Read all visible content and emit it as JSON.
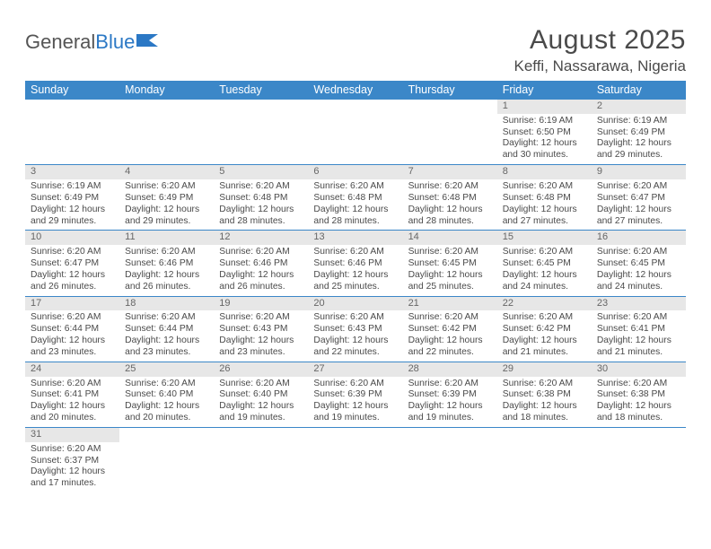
{
  "brand": {
    "part1": "General",
    "part2": "Blue"
  },
  "title": "August 2025",
  "location": "Keffi, Nassarawa, Nigeria",
  "colors": {
    "header_bg": "#3b87c8",
    "header_fg": "#ffffff",
    "daynum_bg": "#e7e7e7",
    "text": "#4a4a4a",
    "rule": "#3b87c8",
    "brand_gray": "#555555",
    "brand_blue": "#2b78c5",
    "page_bg": "#ffffff"
  },
  "typography": {
    "title_fontsize": 30,
    "location_fontsize": 17,
    "dayhead_fontsize": 12.5,
    "cell_fontsize": 10.3,
    "font_family": "Arial"
  },
  "day_names": [
    "Sunday",
    "Monday",
    "Tuesday",
    "Wednesday",
    "Thursday",
    "Friday",
    "Saturday"
  ],
  "labels": {
    "sunrise": "Sunrise:",
    "sunset": "Sunset:",
    "daylight_prefix": "Daylight:",
    "hours_word": "hours",
    "and_word": "and",
    "minutes_word": "minutes."
  },
  "weeks": [
    [
      {
        "n": "",
        "empty": true
      },
      {
        "n": "",
        "empty": true
      },
      {
        "n": "",
        "empty": true
      },
      {
        "n": "",
        "empty": true
      },
      {
        "n": "",
        "empty": true
      },
      {
        "n": "1",
        "sunrise": "6:19 AM",
        "sunset": "6:50 PM",
        "dl_h": 12,
        "dl_m": 30
      },
      {
        "n": "2",
        "sunrise": "6:19 AM",
        "sunset": "6:49 PM",
        "dl_h": 12,
        "dl_m": 29
      }
    ],
    [
      {
        "n": "3",
        "sunrise": "6:19 AM",
        "sunset": "6:49 PM",
        "dl_h": 12,
        "dl_m": 29
      },
      {
        "n": "4",
        "sunrise": "6:20 AM",
        "sunset": "6:49 PM",
        "dl_h": 12,
        "dl_m": 29
      },
      {
        "n": "5",
        "sunrise": "6:20 AM",
        "sunset": "6:48 PM",
        "dl_h": 12,
        "dl_m": 28
      },
      {
        "n": "6",
        "sunrise": "6:20 AM",
        "sunset": "6:48 PM",
        "dl_h": 12,
        "dl_m": 28
      },
      {
        "n": "7",
        "sunrise": "6:20 AM",
        "sunset": "6:48 PM",
        "dl_h": 12,
        "dl_m": 28
      },
      {
        "n": "8",
        "sunrise": "6:20 AM",
        "sunset": "6:48 PM",
        "dl_h": 12,
        "dl_m": 27
      },
      {
        "n": "9",
        "sunrise": "6:20 AM",
        "sunset": "6:47 PM",
        "dl_h": 12,
        "dl_m": 27
      }
    ],
    [
      {
        "n": "10",
        "sunrise": "6:20 AM",
        "sunset": "6:47 PM",
        "dl_h": 12,
        "dl_m": 26
      },
      {
        "n": "11",
        "sunrise": "6:20 AM",
        "sunset": "6:46 PM",
        "dl_h": 12,
        "dl_m": 26
      },
      {
        "n": "12",
        "sunrise": "6:20 AM",
        "sunset": "6:46 PM",
        "dl_h": 12,
        "dl_m": 26
      },
      {
        "n": "13",
        "sunrise": "6:20 AM",
        "sunset": "6:46 PM",
        "dl_h": 12,
        "dl_m": 25
      },
      {
        "n": "14",
        "sunrise": "6:20 AM",
        "sunset": "6:45 PM",
        "dl_h": 12,
        "dl_m": 25
      },
      {
        "n": "15",
        "sunrise": "6:20 AM",
        "sunset": "6:45 PM",
        "dl_h": 12,
        "dl_m": 24
      },
      {
        "n": "16",
        "sunrise": "6:20 AM",
        "sunset": "6:45 PM",
        "dl_h": 12,
        "dl_m": 24
      }
    ],
    [
      {
        "n": "17",
        "sunrise": "6:20 AM",
        "sunset": "6:44 PM",
        "dl_h": 12,
        "dl_m": 23
      },
      {
        "n": "18",
        "sunrise": "6:20 AM",
        "sunset": "6:44 PM",
        "dl_h": 12,
        "dl_m": 23
      },
      {
        "n": "19",
        "sunrise": "6:20 AM",
        "sunset": "6:43 PM",
        "dl_h": 12,
        "dl_m": 23
      },
      {
        "n": "20",
        "sunrise": "6:20 AM",
        "sunset": "6:43 PM",
        "dl_h": 12,
        "dl_m": 22
      },
      {
        "n": "21",
        "sunrise": "6:20 AM",
        "sunset": "6:42 PM",
        "dl_h": 12,
        "dl_m": 22
      },
      {
        "n": "22",
        "sunrise": "6:20 AM",
        "sunset": "6:42 PM",
        "dl_h": 12,
        "dl_m": 21
      },
      {
        "n": "23",
        "sunrise": "6:20 AM",
        "sunset": "6:41 PM",
        "dl_h": 12,
        "dl_m": 21
      }
    ],
    [
      {
        "n": "24",
        "sunrise": "6:20 AM",
        "sunset": "6:41 PM",
        "dl_h": 12,
        "dl_m": 20
      },
      {
        "n": "25",
        "sunrise": "6:20 AM",
        "sunset": "6:40 PM",
        "dl_h": 12,
        "dl_m": 20
      },
      {
        "n": "26",
        "sunrise": "6:20 AM",
        "sunset": "6:40 PM",
        "dl_h": 12,
        "dl_m": 19
      },
      {
        "n": "27",
        "sunrise": "6:20 AM",
        "sunset": "6:39 PM",
        "dl_h": 12,
        "dl_m": 19
      },
      {
        "n": "28",
        "sunrise": "6:20 AM",
        "sunset": "6:39 PM",
        "dl_h": 12,
        "dl_m": 19
      },
      {
        "n": "29",
        "sunrise": "6:20 AM",
        "sunset": "6:38 PM",
        "dl_h": 12,
        "dl_m": 18
      },
      {
        "n": "30",
        "sunrise": "6:20 AM",
        "sunset": "6:38 PM",
        "dl_h": 12,
        "dl_m": 18
      }
    ],
    [
      {
        "n": "31",
        "sunrise": "6:20 AM",
        "sunset": "6:37 PM",
        "dl_h": 12,
        "dl_m": 17
      },
      {
        "n": "",
        "empty": true
      },
      {
        "n": "",
        "empty": true
      },
      {
        "n": "",
        "empty": true
      },
      {
        "n": "",
        "empty": true
      },
      {
        "n": "",
        "empty": true
      },
      {
        "n": "",
        "empty": true
      }
    ]
  ]
}
